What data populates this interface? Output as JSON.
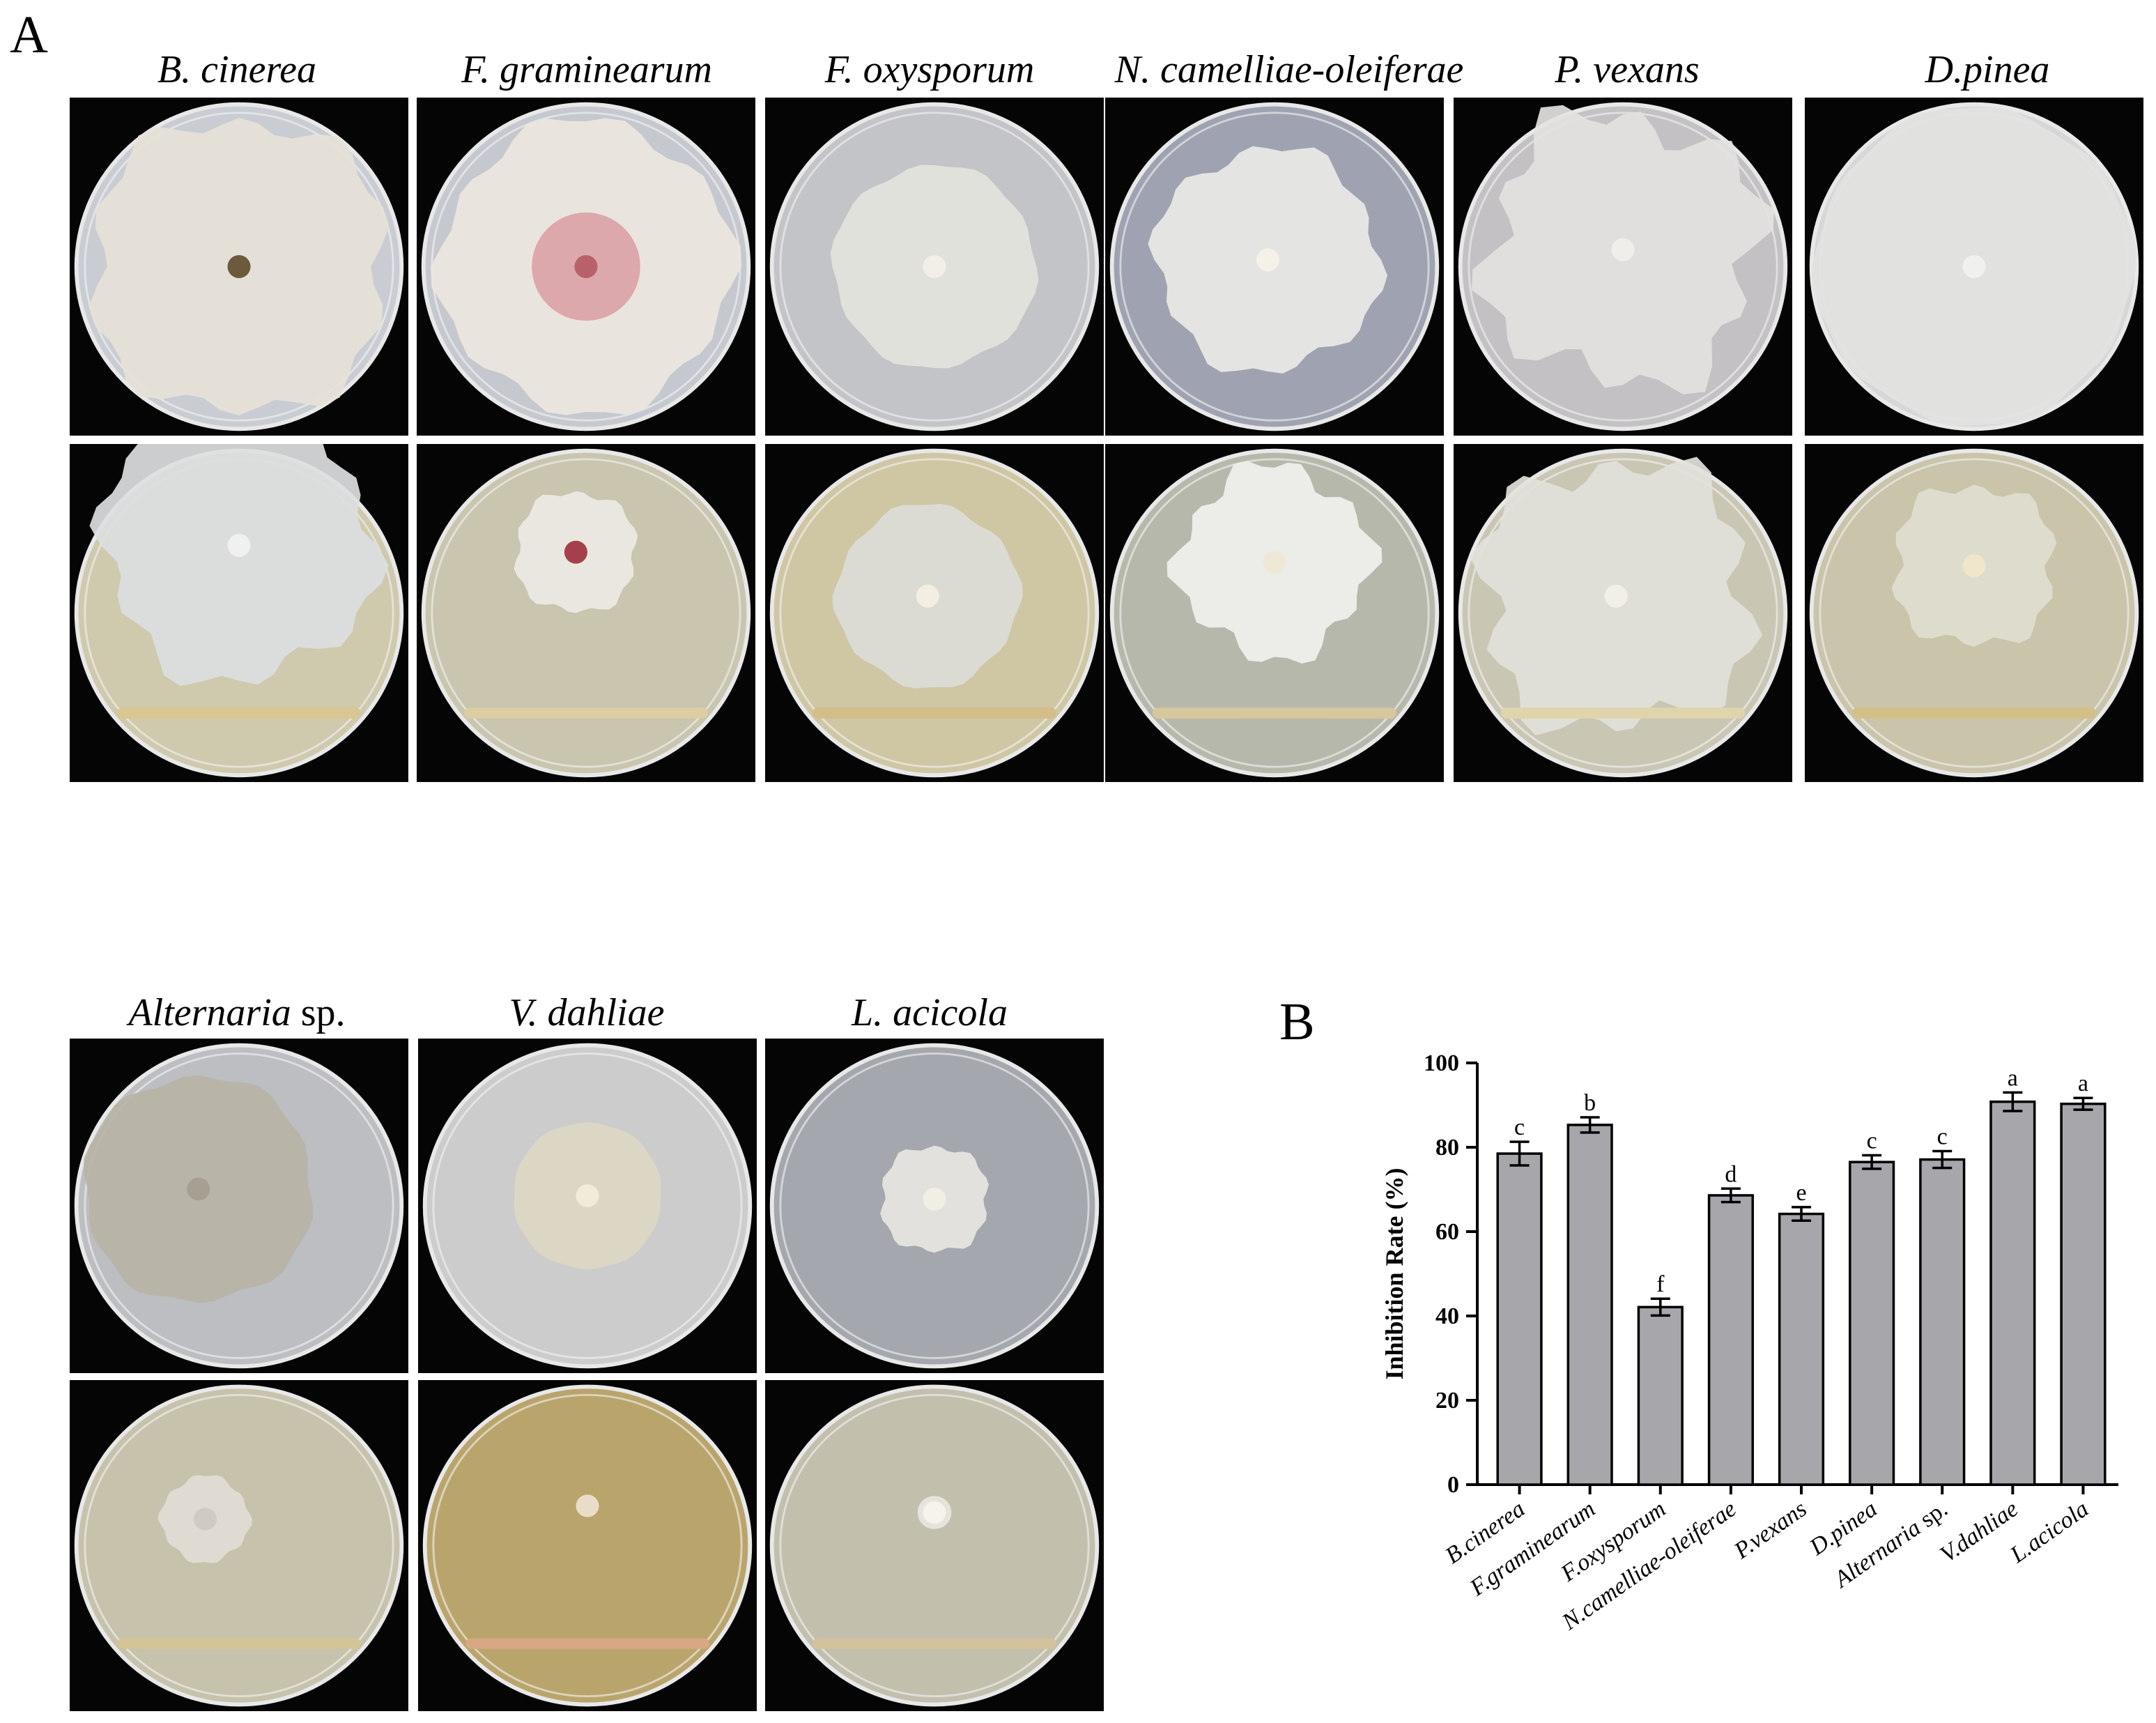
{
  "panels": {
    "a_label": "A",
    "b_label": "B"
  },
  "panel_a": {
    "organisms": [
      {
        "italic": "B. cinerea",
        "suffix": ""
      },
      {
        "italic": "F. graminearum",
        "suffix": ""
      },
      {
        "italic": "F. oxysporum",
        "suffix": ""
      },
      {
        "italic": "N. camelliae-oleiferae",
        "suffix": ""
      },
      {
        "italic": "P. vexans",
        "suffix": ""
      },
      {
        "italic": "D.pinea",
        "suffix": ""
      },
      {
        "italic": "Alternaria",
        "suffix": " sp."
      },
      {
        "italic": "V. dahliae",
        "suffix": ""
      },
      {
        "italic": "L. acicola",
        "suffix": ""
      }
    ]
  },
  "chart_data": {
    "type": "bar",
    "ylabel": "Inhibition Rate (%)",
    "ylim": [
      0,
      100
    ],
    "yticks": [
      "0",
      "20",
      "40",
      "60",
      "80",
      "100"
    ],
    "categories": [
      "B.cinerea",
      "F.graminearum",
      "F.oxysporum",
      "N.camelliae-oleiferae",
      "P.vexans",
      "D.pinea",
      "Alternaria sp.",
      "V.dahliae",
      "L.acicola"
    ],
    "values": [
      78.5,
      85.3,
      42.1,
      68.6,
      64.2,
      76.5,
      77.1,
      90.8,
      90.3
    ],
    "errors": [
      2.8,
      1.8,
      2.0,
      1.6,
      1.6,
      1.6,
      2.0,
      2.2,
      1.4
    ],
    "letters": [
      "c",
      "b",
      "f",
      "d",
      "e",
      "c",
      "c",
      "a",
      "a"
    ],
    "bar_color": "#a6a6ab"
  }
}
